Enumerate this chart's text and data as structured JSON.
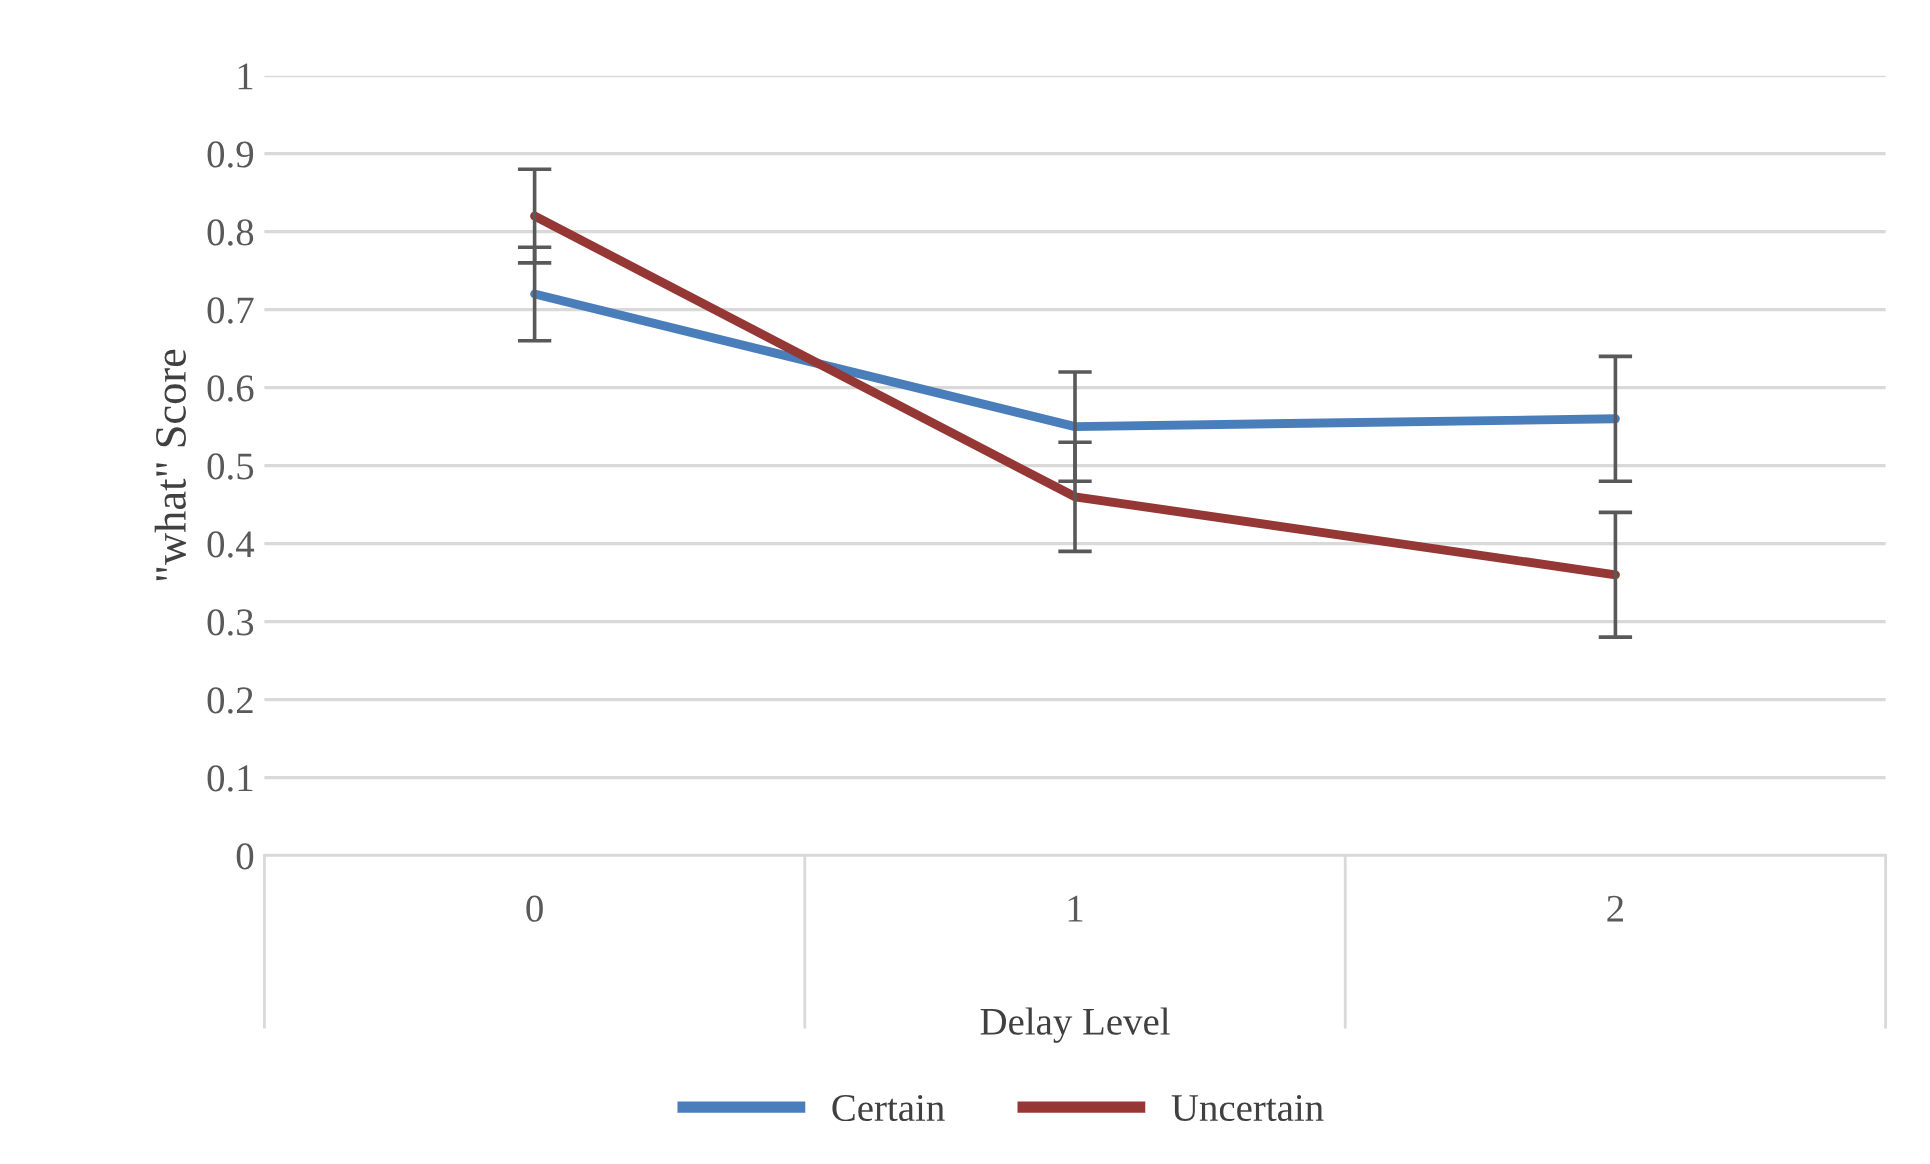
{
  "chart_data": {
    "type": "line",
    "xlabel": "Delay Level",
    "ylabel": "\"what\" Score",
    "categories": [
      "0",
      "1",
      "2"
    ],
    "series": [
      {
        "name": "Certain",
        "color": "#4a7ebb",
        "values": [
          0.72,
          0.55,
          0.56
        ],
        "errors": [
          0.06,
          0.07,
          0.08
        ]
      },
      {
        "name": "Uncertain",
        "color": "#953735",
        "values": [
          0.82,
          0.46,
          0.36
        ],
        "errors": [
          0.06,
          0.07,
          0.08
        ]
      }
    ],
    "ylim": [
      0,
      1
    ],
    "yticks": [
      0,
      0.1,
      0.2,
      0.3,
      0.4,
      0.5,
      0.6,
      0.7,
      0.8,
      0.9,
      1
    ],
    "grid": "y",
    "legend": "bottom",
    "marker": "none",
    "line_style": "solid"
  }
}
